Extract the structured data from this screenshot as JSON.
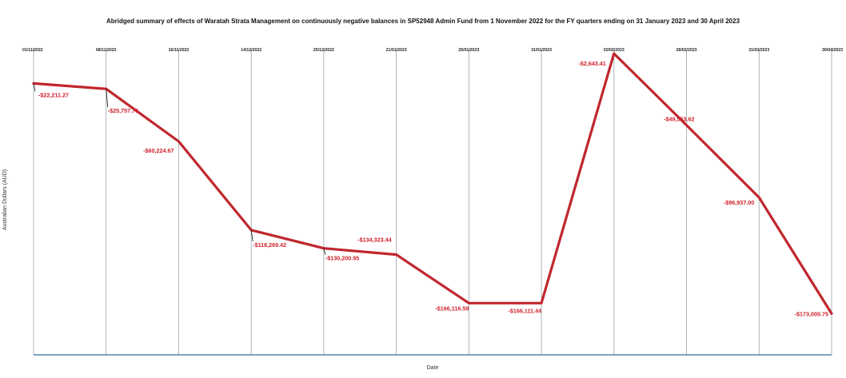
{
  "chart_data": {
    "type": "line",
    "title": "Abridged summary of effects of Waratah Strata Management on continuously negative balances in SP52948 Admin Fund from 1 November 2022 for the FY quarters ending on 31 January 2023 and 30 April 2023",
    "xlabel": "Date",
    "ylabel": "Australian Dollars (AUD)",
    "x": [
      "01/11/2022",
      "08/11/2022",
      "16/11/2022",
      "14/12/2022",
      "25/12/2022",
      "21/01/2023",
      "25/01/2023",
      "31/01/2023",
      "02/02/2023",
      "28/02/2023",
      "31/03/2023",
      "30/04/2023"
    ],
    "values": [
      -22211.27,
      -25757.76,
      -60224.67,
      -118269.42,
      -130200.95,
      -134323.44,
      -166116.59,
      -166111.44,
      -2643.41,
      -49553.62,
      -96937.0,
      -173000.75
    ],
    "labels": [
      "-$22,211.27",
      "-$25,757.76",
      "-$60,224.67",
      "-$118,269.42",
      "-$130,200.95",
      "-$134,323.44",
      "-$166,116.59",
      "-$166,111.44",
      "-$2,643.41",
      "-$49,553.62",
      "-$96,937.00",
      "-$173,000.75"
    ],
    "ylim": [
      -200000,
      0
    ],
    "grid": "vertical",
    "legend": "none",
    "colors": {
      "line": "#c0272d",
      "label": "#d0202a",
      "baseline": "#2a6f9e"
    }
  }
}
